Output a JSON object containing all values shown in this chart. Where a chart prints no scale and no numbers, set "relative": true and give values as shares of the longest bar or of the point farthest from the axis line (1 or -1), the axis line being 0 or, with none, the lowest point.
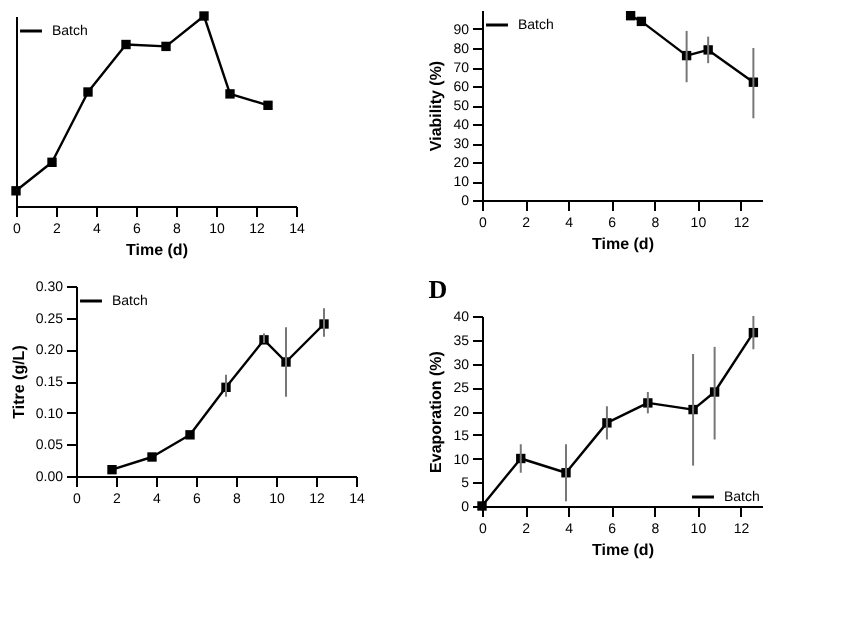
{
  "chart_data": [
    {
      "type": "line",
      "relative": true,
      "xlabel": "Time (d)",
      "x": [
        0,
        1.8,
        3.6,
        5.5,
        7.5,
        9.4,
        10.7,
        12.6
      ],
      "xlim": [
        0,
        14
      ],
      "xticks": [
        0,
        2,
        4,
        6,
        8,
        10,
        12,
        14
      ],
      "marker": "square",
      "legend": "top left",
      "series": [
        {
          "name": "Batch",
          "color": "#000000",
          "values": [
            0.08,
            0.23,
            0.6,
            0.85,
            0.84,
            1,
            0.59,
            0.53
          ]
        }
      ]
    },
    {
      "type": "line",
      "xlabel": "Time (d)",
      "ylabel": "Viability (%)",
      "x": [
        6.9,
        7.4,
        9.5,
        10.5,
        12.6
      ],
      "xlim": [
        0,
        13
      ],
      "xticks": [
        0,
        2,
        4,
        6,
        8,
        10,
        12
      ],
      "ylim": [
        0,
        100
      ],
      "yticks": [
        0,
        10,
        20,
        30,
        40,
        50,
        60,
        70,
        80,
        90
      ],
      "marker": "square",
      "legend": "top left",
      "series": [
        {
          "name": "Batch",
          "color": "#000000",
          "values": [
            97,
            94,
            76,
            79,
            62
          ],
          "errors": [
            null,
            null,
            [
              62,
              89
            ],
            [
              72,
              86
            ],
            [
              43,
              80
            ]
          ]
        }
      ]
    },
    {
      "type": "line",
      "ylabel": "Titre (g/L)",
      "x": [
        1.8,
        3.8,
        5.7,
        7.5,
        9.4,
        10.5,
        12.4
      ],
      "xlim": [
        0,
        14
      ],
      "xticks": [
        0,
        2,
        4,
        6,
        8,
        10,
        12,
        14
      ],
      "ylim": [
        0,
        0.3
      ],
      "yticks": [
        {
          "value": 0,
          "label": "0.00"
        },
        0.05,
        {
          "value": 0.1,
          "label": "0.10"
        },
        0.15,
        {
          "value": 0.2,
          "label": "0.20"
        },
        0.25,
        {
          "value": 0.3,
          "label": "0.30"
        }
      ],
      "marker": "square",
      "legend": "top left",
      "series": [
        {
          "name": "Batch",
          "color": "#000000",
          "values": [
            0.01,
            0.03,
            0.065,
            0.14,
            0.215,
            0.18,
            0.24
          ],
          "errors": [
            null,
            null,
            null,
            [
              0.125,
              0.16
            ],
            [
              0.21,
              0.225
            ],
            [
              0.125,
              0.235
            ],
            [
              0.22,
              0.265
            ]
          ]
        }
      ]
    },
    {
      "type": "line",
      "title": "D",
      "xlabel": "Time (d)",
      "ylabel": "Evaporation (%)",
      "x": [
        0,
        1.8,
        3.9,
        5.8,
        7.7,
        9.8,
        10.8,
        12.6
      ],
      "xlim": [
        0,
        13
      ],
      "xticks": [
        0,
        2,
        4,
        6,
        8,
        10,
        12
      ],
      "ylim": [
        0,
        40
      ],
      "yticks": [
        0,
        5,
        10,
        15,
        20,
        25,
        30,
        35,
        40
      ],
      "marker": "square",
      "legend": "bottom right",
      "series": [
        {
          "name": "Batch",
          "color": "#000000",
          "values": [
            0,
            10,
            7,
            17.5,
            21.7,
            20.3,
            24,
            36.5
          ],
          "errors": [
            null,
            [
              7,
              13
            ],
            [
              1,
              13
            ],
            [
              14,
              21
            ],
            [
              19.5,
              24
            ],
            [
              8.5,
              32
            ],
            [
              14,
              33.5
            ],
            [
              33,
              40
            ]
          ]
        }
      ]
    }
  ]
}
